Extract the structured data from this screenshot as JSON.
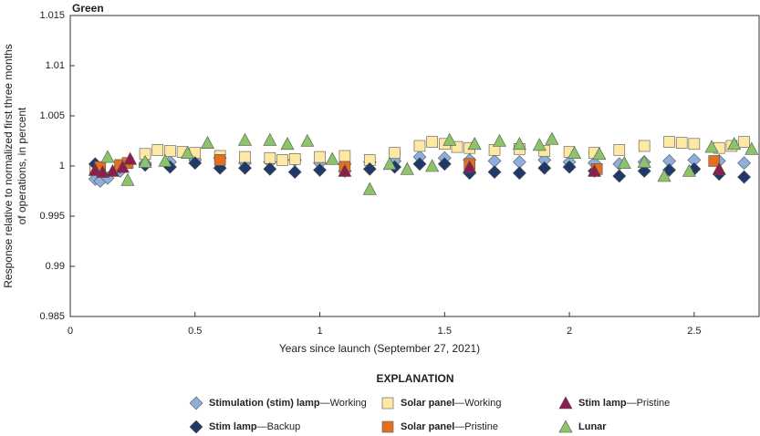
{
  "chart_data": {
    "type": "scatter",
    "title": "Green",
    "xlabel": "Years since launch (September 27, 2021)",
    "ylabel": [
      "Response relative to normalized first three months",
      "of operations, in percent"
    ],
    "legend_title": "EXPLANATION",
    "xlim": [
      0,
      2.76
    ],
    "ylim": [
      0.985,
      1.015
    ],
    "xticks": [
      0,
      0.5,
      1,
      1.5,
      2,
      2.5
    ],
    "yticks": [
      0.985,
      0.99,
      0.995,
      1,
      1.005,
      1.01,
      1.015
    ],
    "series": [
      {
        "name": "Stimulation (stim) lamp—Working",
        "color": "#8eaedc",
        "marker": "diamond",
        "x": [
          0.1,
          0.12,
          0.15,
          0.2,
          0.3,
          0.4,
          0.5,
          0.6,
          0.7,
          0.8,
          0.9,
          1.0,
          1.1,
          1.2,
          1.3,
          1.4,
          1.5,
          1.6,
          1.7,
          1.8,
          1.9,
          2.0,
          2.1,
          2.2,
          2.3,
          2.4,
          2.5,
          2.6,
          2.7
        ],
        "values": [
          0.9987,
          0.9985,
          0.9988,
          0.9995,
          1.0003,
          1.0004,
          1.0006,
          1.0008,
          1.0003,
          1.0004,
          1.0006,
          1.0003,
          1.0002,
          1.0004,
          1.0005,
          1.0009,
          1.0008,
          1.0006,
          1.0005,
          1.0004,
          1.0006,
          1.0004,
          1.0003,
          1.0002,
          1.0004,
          1.0005,
          1.0006,
          1.0005,
          1.0003
        ]
      },
      {
        "name": "Stim lamp—Backup",
        "color": "#1f3a68",
        "marker": "diamond",
        "x": [
          0.1,
          0.2,
          0.3,
          0.4,
          0.5,
          0.6,
          0.7,
          0.8,
          0.9,
          1.0,
          1.1,
          1.2,
          1.3,
          1.4,
          1.5,
          1.6,
          1.7,
          1.8,
          1.9,
          2.0,
          2.1,
          2.2,
          2.3,
          2.4,
          2.5,
          2.6,
          2.7
        ],
        "values": [
          1.0002,
          0.9999,
          1.0001,
          0.9999,
          1.0003,
          0.9998,
          0.9998,
          0.9997,
          0.9994,
          0.9996,
          0.9995,
          0.9997,
          0.9999,
          1.0002,
          1.0002,
          0.9993,
          0.9994,
          0.9993,
          0.9998,
          0.9999,
          0.9995,
          0.999,
          0.9995,
          0.9996,
          0.9997,
          0.9992,
          0.9989
        ]
      },
      {
        "name": "Solar panel—Working",
        "color": "#fde8a4",
        "marker": "square",
        "x": [
          0.1,
          0.2,
          0.3,
          0.35,
          0.4,
          0.45,
          0.5,
          0.6,
          0.7,
          0.8,
          0.85,
          0.9,
          1.0,
          1.1,
          1.2,
          1.3,
          1.4,
          1.45,
          1.5,
          1.55,
          1.6,
          1.7,
          1.8,
          1.9,
          2.0,
          2.1,
          2.2,
          2.3,
          2.4,
          2.45,
          2.5,
          2.6,
          2.65,
          2.7
        ],
        "values": [
          0.9996,
          0.9999,
          1.0012,
          1.0016,
          1.0015,
          1.0014,
          1.0013,
          1.001,
          1.0009,
          1.0008,
          1.0006,
          1.0007,
          1.0009,
          1.001,
          1.0006,
          1.0013,
          1.002,
          1.0024,
          1.0022,
          1.0019,
          1.0018,
          1.0016,
          1.0017,
          1.0015,
          1.0014,
          1.0013,
          1.0016,
          1.002,
          1.0024,
          1.0023,
          1.0022,
          1.0018,
          1.002,
          1.0024
        ]
      },
      {
        "name": "Solar panel—Pristine",
        "color": "#e2701f",
        "marker": "square",
        "x": [
          0.12,
          0.2,
          0.23,
          0.6,
          1.1,
          1.6,
          2.11,
          2.58
        ],
        "values": [
          0.9999,
          1.0001,
          1.0003,
          1.0006,
          0.9999,
          1.0002,
          0.9997,
          1.0005
        ]
      },
      {
        "name": "Stim lamp—Pristine",
        "color": "#8c1d4c",
        "marker": "triangle",
        "x": [
          0.1,
          0.13,
          0.17,
          0.21,
          0.24,
          1.1,
          1.6,
          2.1,
          2.6
        ],
        "values": [
          0.9996,
          0.9994,
          0.9995,
          0.9999,
          1.0007,
          0.9995,
          0.9999,
          0.9995,
          0.9997
        ]
      },
      {
        "name": "Lunar",
        "color": "#8cc46a",
        "marker": "triangle",
        "x": [
          0.15,
          0.23,
          0.3,
          0.38,
          0.47,
          0.55,
          0.7,
          0.8,
          0.87,
          0.95,
          1.05,
          1.2,
          1.28,
          1.35,
          1.45,
          1.52,
          1.62,
          1.72,
          1.8,
          1.88,
          1.93,
          2.02,
          2.12,
          2.22,
          2.3,
          2.38,
          2.48,
          2.57,
          2.66,
          2.73
        ],
        "values": [
          1.0009,
          0.9986,
          1.0004,
          1.0005,
          1.0013,
          1.0023,
          1.0026,
          1.0026,
          1.0022,
          1.0025,
          1.0007,
          0.9977,
          1.0002,
          0.9997,
          1.0,
          1.0026,
          1.0022,
          1.0025,
          1.0022,
          1.0021,
          1.0027,
          1.0013,
          1.0012,
          1.0003,
          1.0004,
          0.999,
          0.9995,
          1.0019,
          1.0022,
          1.0017
        ]
      }
    ]
  }
}
